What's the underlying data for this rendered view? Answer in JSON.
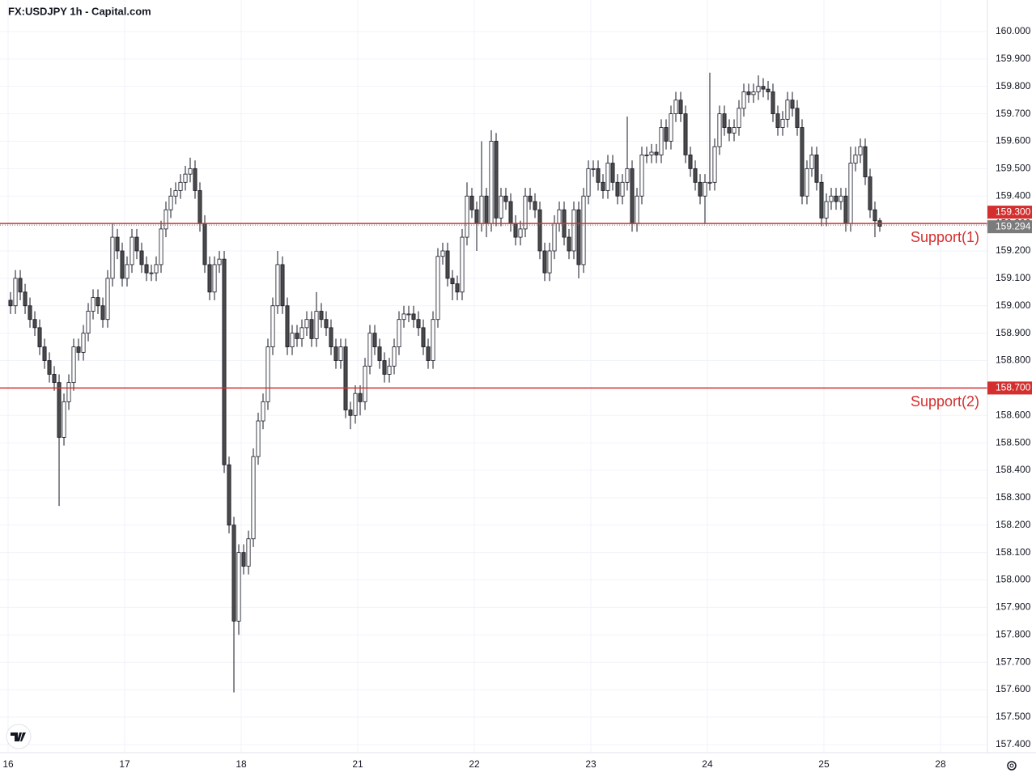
{
  "chart_data": {
    "type": "candlestick",
    "title": "FX:USDJPY 1h - Capital.com",
    "x": [
      0,
      1,
      2,
      3,
      4,
      5,
      6,
      7,
      8,
      9,
      10,
      11,
      12,
      13,
      14,
      15,
      16,
      17,
      18,
      19,
      20,
      21,
      22,
      23,
      24,
      25,
      26,
      27,
      28,
      29,
      30,
      31,
      32,
      33,
      34,
      35,
      36,
      37,
      38,
      39,
      40,
      41,
      42,
      43,
      44,
      45,
      46,
      47,
      48,
      49,
      50,
      51,
      52,
      53,
      54,
      55,
      56,
      57,
      58,
      59,
      60,
      61,
      62,
      63,
      64,
      65,
      66,
      67,
      68,
      69,
      70,
      71,
      72,
      73,
      74,
      75,
      76,
      77,
      78,
      79,
      80,
      81,
      82,
      83,
      84,
      85,
      86,
      87,
      88,
      89,
      90,
      91,
      92,
      93,
      94,
      95,
      96,
      97,
      98,
      99,
      100,
      101,
      102,
      103,
      104,
      105,
      106,
      107,
      108,
      109,
      110,
      111,
      112,
      113,
      114,
      115,
      116,
      117,
      118,
      119,
      120,
      121,
      122,
      123,
      124,
      125,
      126,
      127,
      128,
      129,
      130,
      131,
      132,
      133,
      134,
      135,
      136,
      137,
      138,
      139,
      140,
      141,
      142,
      143,
      144,
      145,
      146,
      147,
      148,
      149,
      150,
      151,
      152,
      153,
      154,
      155,
      156,
      157,
      158,
      159,
      160,
      161,
      162,
      163,
      164,
      165,
      166,
      167,
      168,
      169,
      170,
      171,
      172,
      173,
      174,
      175,
      176,
      177,
      178,
      179
    ],
    "open": [
      159.02,
      159.0,
      159.1,
      159.05,
      159.0,
      158.95,
      158.92,
      158.85,
      158.8,
      158.75,
      158.72,
      158.52,
      158.65,
      158.72,
      158.85,
      158.83,
      158.9,
      158.98,
      159.03,
      159.0,
      158.95,
      159.1,
      159.25,
      159.2,
      159.1,
      159.15,
      159.25,
      159.2,
      159.15,
      159.12,
      159.12,
      159.15,
      159.28,
      159.35,
      159.4,
      159.42,
      159.45,
      159.48,
      159.5,
      159.42,
      159.3,
      159.15,
      159.05,
      159.15,
      159.17,
      158.42,
      158.2,
      157.85,
      158.1,
      158.05,
      158.15,
      158.45,
      158.58,
      158.65,
      158.85,
      159.0,
      159.15,
      159.0,
      158.85,
      158.9,
      158.88,
      158.92,
      158.95,
      158.88,
      158.98,
      158.95,
      158.92,
      158.85,
      158.8,
      158.85,
      158.62,
      158.6,
      158.68,
      158.65,
      158.78,
      158.9,
      158.85,
      158.8,
      158.75,
      158.78,
      158.85,
      158.95,
      158.97,
      158.97,
      158.95,
      158.92,
      158.85,
      158.8,
      158.95,
      159.18,
      159.2,
      159.1,
      159.08,
      159.05,
      159.25,
      159.4,
      159.35,
      159.3,
      159.4,
      159.3,
      159.6,
      159.32,
      159.4,
      159.38,
      159.3,
      159.25,
      159.28,
      159.4,
      159.38,
      159.35,
      159.2,
      159.12,
      159.2,
      159.3,
      159.35,
      159.25,
      159.2,
      159.35,
      159.15,
      159.4,
      159.5,
      159.5,
      159.45,
      159.42,
      159.52,
      159.45,
      159.4,
      159.45,
      159.5,
      159.3,
      159.4,
      159.55,
      159.55,
      159.56,
      159.55,
      159.65,
      159.6,
      159.7,
      159.75,
      159.7,
      159.55,
      159.5,
      159.45,
      159.4,
      159.45,
      159.45,
      159.58,
      159.7,
      159.65,
      159.63,
      159.65,
      159.72,
      159.78,
      159.77,
      159.78,
      159.8,
      159.79,
      159.78,
      159.7,
      159.65,
      159.68,
      159.75,
      159.72,
      159.65,
      159.4,
      159.5,
      159.55,
      159.45,
      159.32,
      159.38,
      159.4,
      159.38,
      159.4,
      159.3,
      159.52,
      159.55,
      159.58,
      159.47,
      159.35,
      159.31
    ],
    "high": [
      159.05,
      159.13,
      159.13,
      159.08,
      159.03,
      158.98,
      158.95,
      158.88,
      158.83,
      158.78,
      158.75,
      158.68,
      158.75,
      158.88,
      158.88,
      158.93,
      159.01,
      159.06,
      159.06,
      159.03,
      159.13,
      159.3,
      159.28,
      159.23,
      159.18,
      159.28,
      159.28,
      159.23,
      159.18,
      159.15,
      159.18,
      159.31,
      159.38,
      159.43,
      159.45,
      159.48,
      159.51,
      159.54,
      159.53,
      159.45,
      159.33,
      159.18,
      159.18,
      159.2,
      159.2,
      158.45,
      158.23,
      158.13,
      158.13,
      158.18,
      158.48,
      158.61,
      158.68,
      158.88,
      159.03,
      159.2,
      159.18,
      159.03,
      158.93,
      158.93,
      158.95,
      158.98,
      158.98,
      159.05,
      159.01,
      158.98,
      158.95,
      158.88,
      158.88,
      158.88,
      158.65,
      158.71,
      158.71,
      158.81,
      158.93,
      158.93,
      158.88,
      158.83,
      158.81,
      158.88,
      158.98,
      159.0,
      159.0,
      159.0,
      158.98,
      158.95,
      158.88,
      158.98,
      159.21,
      159.23,
      159.23,
      159.13,
      159.11,
      159.28,
      159.45,
      159.43,
      159.38,
      159.6,
      159.43,
      159.64,
      159.63,
      159.43,
      159.43,
      159.41,
      159.33,
      159.31,
      159.43,
      159.43,
      159.41,
      159.38,
      159.23,
      159.23,
      159.33,
      159.38,
      159.38,
      159.28,
      159.38,
      159.38,
      159.43,
      159.53,
      159.53,
      159.53,
      159.48,
      159.55,
      159.55,
      159.48,
      159.48,
      159.69,
      159.53,
      159.43,
      159.58,
      159.58,
      159.59,
      159.59,
      159.68,
      159.68,
      159.73,
      159.78,
      159.78,
      159.73,
      159.58,
      159.53,
      159.48,
      159.48,
      159.85,
      159.61,
      159.73,
      159.73,
      159.68,
      159.68,
      159.75,
      159.81,
      159.81,
      159.81,
      159.84,
      159.83,
      159.82,
      159.81,
      159.73,
      159.71,
      159.78,
      159.78,
      159.75,
      159.68,
      159.53,
      159.58,
      159.58,
      159.48,
      159.41,
      159.43,
      159.43,
      159.43,
      159.43,
      159.58,
      159.58,
      159.61,
      159.61,
      159.5,
      159.38,
      159.32
    ],
    "low": [
      158.97,
      158.97,
      159.02,
      158.97,
      158.92,
      158.89,
      158.82,
      158.77,
      158.72,
      158.69,
      158.27,
      158.49,
      158.62,
      158.69,
      158.8,
      158.8,
      158.87,
      158.95,
      158.97,
      158.92,
      158.92,
      159.07,
      159.17,
      159.07,
      159.07,
      159.12,
      159.17,
      159.12,
      159.09,
      159.09,
      159.09,
      159.12,
      159.25,
      159.32,
      159.37,
      159.39,
      159.42,
      159.45,
      159.39,
      159.27,
      159.12,
      159.02,
      159.02,
      159.12,
      158.39,
      158.17,
      157.59,
      157.8,
      158.02,
      158.02,
      158.12,
      158.42,
      158.55,
      158.62,
      158.82,
      158.97,
      158.97,
      158.82,
      158.82,
      158.85,
      158.85,
      158.89,
      158.85,
      158.85,
      158.92,
      158.89,
      158.82,
      158.77,
      158.77,
      158.59,
      158.55,
      158.57,
      158.6,
      158.62,
      158.75,
      158.82,
      158.77,
      158.72,
      158.72,
      158.75,
      158.82,
      158.92,
      158.94,
      158.92,
      158.89,
      158.82,
      158.77,
      158.77,
      158.92,
      159.15,
      159.07,
      159.02,
      159.02,
      159.02,
      159.22,
      159.32,
      159.2,
      159.27,
      159.25,
      159.27,
      159.29,
      159.29,
      159.35,
      159.27,
      159.22,
      159.22,
      159.25,
      159.35,
      159.32,
      159.17,
      159.09,
      159.09,
      159.17,
      159.27,
      159.22,
      159.17,
      159.17,
      159.1,
      159.12,
      159.37,
      159.47,
      159.42,
      159.39,
      159.39,
      159.42,
      159.37,
      159.37,
      159.42,
      159.27,
      159.27,
      159.37,
      159.52,
      159.52,
      159.52,
      159.52,
      159.57,
      159.57,
      159.67,
      159.67,
      159.52,
      159.47,
      159.42,
      159.37,
      159.3,
      159.42,
      159.42,
      159.55,
      159.62,
      159.6,
      159.6,
      159.62,
      159.69,
      159.74,
      159.74,
      159.75,
      159.76,
      159.75,
      159.67,
      159.62,
      159.62,
      159.65,
      159.69,
      159.62,
      159.37,
      159.37,
      159.47,
      159.42,
      159.29,
      159.29,
      159.35,
      159.35,
      159.35,
      159.27,
      159.27,
      159.49,
      159.52,
      159.44,
      159.32,
      159.25,
      159.27
    ],
    "close": [
      159.0,
      159.1,
      159.05,
      159.0,
      158.95,
      158.92,
      158.85,
      158.8,
      158.75,
      158.72,
      158.52,
      158.65,
      158.72,
      158.85,
      158.83,
      158.9,
      158.98,
      159.03,
      159.0,
      158.95,
      159.1,
      159.25,
      159.2,
      159.1,
      159.15,
      159.25,
      159.2,
      159.15,
      159.12,
      159.12,
      159.15,
      159.28,
      159.35,
      159.4,
      159.42,
      159.45,
      159.48,
      159.5,
      159.42,
      159.3,
      159.15,
      159.05,
      159.15,
      159.17,
      158.42,
      158.2,
      157.85,
      158.1,
      158.05,
      158.15,
      158.45,
      158.58,
      158.65,
      158.85,
      159.0,
      159.15,
      159.0,
      158.85,
      158.9,
      158.88,
      158.92,
      158.95,
      158.88,
      158.98,
      158.95,
      158.92,
      158.85,
      158.8,
      158.85,
      158.62,
      158.6,
      158.68,
      158.65,
      158.78,
      158.9,
      158.85,
      158.8,
      158.75,
      158.78,
      158.85,
      158.95,
      158.97,
      158.97,
      158.95,
      158.92,
      158.85,
      158.8,
      158.95,
      159.18,
      159.2,
      159.1,
      159.08,
      159.05,
      159.25,
      159.4,
      159.35,
      159.3,
      159.4,
      159.3,
      159.6,
      159.32,
      159.4,
      159.38,
      159.3,
      159.25,
      159.28,
      159.4,
      159.38,
      159.35,
      159.2,
      159.12,
      159.2,
      159.3,
      159.35,
      159.25,
      159.2,
      159.35,
      159.15,
      159.4,
      159.5,
      159.5,
      159.45,
      159.42,
      159.52,
      159.45,
      159.4,
      159.45,
      159.5,
      159.3,
      159.4,
      159.55,
      159.55,
      159.56,
      159.55,
      159.65,
      159.6,
      159.7,
      159.75,
      159.7,
      159.55,
      159.5,
      159.45,
      159.4,
      159.45,
      159.45,
      159.58,
      159.7,
      159.65,
      159.63,
      159.65,
      159.72,
      159.78,
      159.77,
      159.78,
      159.8,
      159.79,
      159.78,
      159.7,
      159.65,
      159.68,
      159.75,
      159.72,
      159.65,
      159.4,
      159.5,
      159.55,
      159.45,
      159.32,
      159.38,
      159.4,
      159.38,
      159.4,
      159.3,
      159.52,
      159.55,
      159.58,
      159.47,
      159.35,
      159.31,
      159.29
    ],
    "up_color": "#ffffff",
    "down_color": "#4a4a4a",
    "wick_color": "#131722",
    "xlim": [
      -2.17,
      201.17
    ],
    "xticks": [
      {
        "value": -0.5,
        "label": "16"
      },
      {
        "value": 23.5,
        "label": "17"
      },
      {
        "value": 47.5,
        "label": "18"
      },
      {
        "value": 71.5,
        "label": "21"
      },
      {
        "value": 95.5,
        "label": "22"
      },
      {
        "value": 119.5,
        "label": "23"
      },
      {
        "value": 143.5,
        "label": "24"
      },
      {
        "value": 167.5,
        "label": "25"
      },
      {
        "value": 191.5,
        "label": "28"
      }
    ],
    "ylim": [
      157.37,
      160.115
    ],
    "yticks": [
      {
        "value": 157.4,
        "label": "157.400"
      },
      {
        "value": 157.5,
        "label": "157.500"
      },
      {
        "value": 157.6,
        "label": "157.600"
      },
      {
        "value": 157.7,
        "label": "157.700"
      },
      {
        "value": 157.8,
        "label": "157.800"
      },
      {
        "value": 157.9,
        "label": "157.900"
      },
      {
        "value": 158.0,
        "label": "158.000"
      },
      {
        "value": 158.1,
        "label": "158.100"
      },
      {
        "value": 158.2,
        "label": "158.200"
      },
      {
        "value": 158.3,
        "label": "158.300"
      },
      {
        "value": 158.4,
        "label": "158.400"
      },
      {
        "value": 158.5,
        "label": "158.500"
      },
      {
        "value": 158.6,
        "label": "158.600"
      },
      {
        "value": 158.7,
        "label": "158.700"
      },
      {
        "value": 158.8,
        "label": "158.800"
      },
      {
        "value": 158.9,
        "label": "158.900"
      },
      {
        "value": 159.0,
        "label": "159.000"
      },
      {
        "value": 159.1,
        "label": "159.100"
      },
      {
        "value": 159.2,
        "label": "159.200"
      },
      {
        "value": 159.3,
        "label": "159.300"
      },
      {
        "value": 159.4,
        "label": "159.400"
      },
      {
        "value": 159.5,
        "label": "159.500"
      },
      {
        "value": 159.6,
        "label": "159.600"
      },
      {
        "value": 159.7,
        "label": "159.700"
      },
      {
        "value": 159.8,
        "label": "159.800"
      },
      {
        "value": 159.9,
        "label": "159.900"
      },
      {
        "value": 160.0,
        "label": "160.000"
      }
    ],
    "grid": true,
    "levels": [
      {
        "value": 159.3,
        "label": "159.300",
        "name": "Support(1)",
        "color": "#d32f2f"
      },
      {
        "value": 158.7,
        "label": "158.700",
        "name": "Support(2)",
        "color": "#d32f2f"
      }
    ],
    "last_price": {
      "value": 159.294,
      "label": "159.294",
      "color": "#7b7b7b"
    }
  }
}
